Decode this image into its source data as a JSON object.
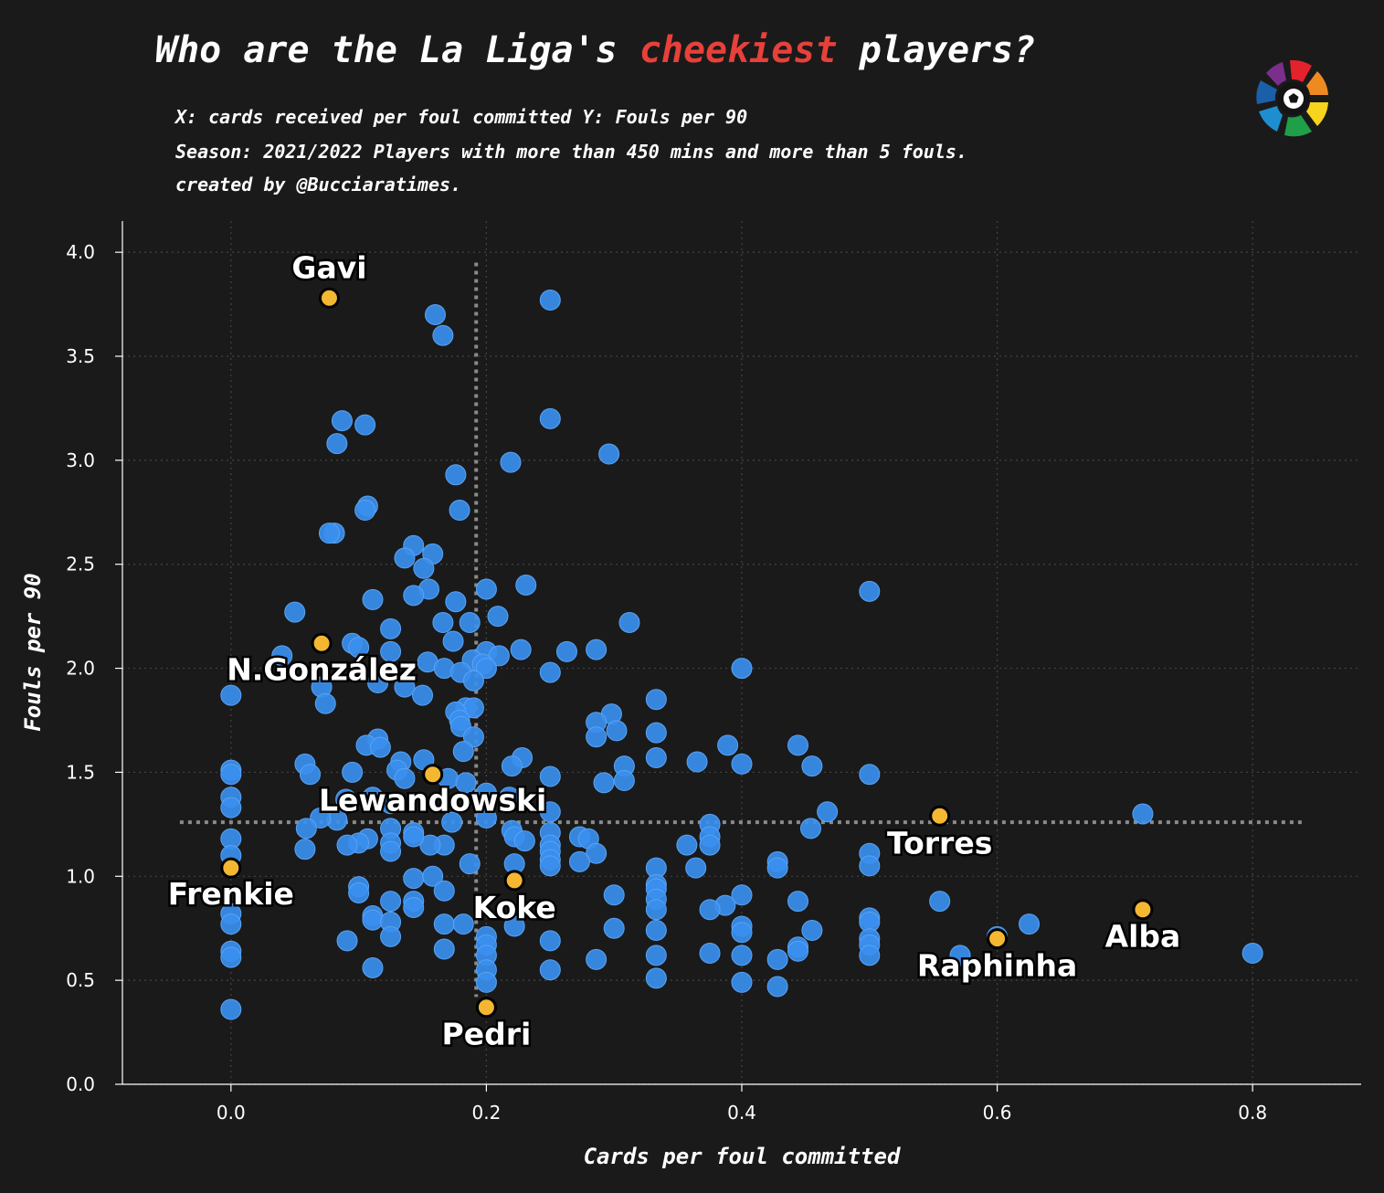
{
  "header": {
    "title_pre": "Who are the La Liga's ",
    "title_highlight": "cheekiest",
    "title_post": " players?",
    "subtitle_1": "X: cards received per foul committed Y: Fouls per 90",
    "subtitle_2": "Season: 2021/2022 Players with more than 450 mins and more than 5 fouls.",
    "subtitle_3": "created by @Bucciaratimes."
  },
  "colors": {
    "background": "#1a1a1a",
    "points": "#3a8fef",
    "highlight_points": "#f4b731",
    "title_highlight": "#e8403a",
    "grid": "#444444",
    "mean_lines": "#8a8a8a"
  },
  "logo_icon": "laliga-logo-icon",
  "chart_data": {
    "type": "scatter",
    "title": "Who are the La Liga's cheekiest players?",
    "xlabel": "Cards per foul committed",
    "ylabel": "Fouls per 90",
    "xlim": [
      -0.085,
      0.885
    ],
    "ylim": [
      0,
      4.15
    ],
    "x_ticks": [
      "0.0",
      "0.2",
      "0.4",
      "0.6",
      "0.8"
    ],
    "y_ticks": [
      "0.0",
      "0.5",
      "1.0",
      "1.5",
      "2.0",
      "2.5",
      "3.0",
      "3.5",
      "4.0"
    ],
    "grid": true,
    "mean_x": 0.192,
    "mean_y": 1.26,
    "points": [
      [
        0.25,
        3.77
      ],
      [
        0.16,
        3.7
      ],
      [
        0.166,
        3.6
      ],
      [
        0.25,
        3.2
      ],
      [
        0.087,
        3.19
      ],
      [
        0.105,
        3.17
      ],
      [
        0.083,
        3.08
      ],
      [
        0.296,
        3.03
      ],
      [
        0.219,
        2.99
      ],
      [
        0.176,
        2.93
      ],
      [
        0.107,
        2.78
      ],
      [
        0.105,
        2.76
      ],
      [
        0.179,
        2.76
      ],
      [
        0.081,
        2.65
      ],
      [
        0.077,
        2.65
      ],
      [
        0.143,
        2.59
      ],
      [
        0.158,
        2.55
      ],
      [
        0.136,
        2.53
      ],
      [
        0.151,
        2.48
      ],
      [
        0.5,
        2.37
      ],
      [
        0.2,
        2.38
      ],
      [
        0.231,
        2.4
      ],
      [
        0.155,
        2.38
      ],
      [
        0.143,
        2.35
      ],
      [
        0.111,
        2.33
      ],
      [
        0.176,
        2.32
      ],
      [
        0.05,
        2.27
      ],
      [
        0.209,
        2.25
      ],
      [
        0.166,
        2.22
      ],
      [
        0.187,
        2.22
      ],
      [
        0.312,
        2.22
      ],
      [
        0.125,
        2.19
      ],
      [
        0.174,
        2.13
      ],
      [
        0.095,
        2.12
      ],
      [
        0.1,
        2.1
      ],
      [
        0.227,
        2.09
      ],
      [
        0.263,
        2.08
      ],
      [
        0.286,
        2.09
      ],
      [
        0.04,
        2.06
      ],
      [
        0.2,
        2.08
      ],
      [
        0.125,
        2.08
      ],
      [
        0.21,
        2.06
      ],
      [
        0.154,
        2.03
      ],
      [
        0.189,
        2.04
      ],
      [
        0.197,
        2.02
      ],
      [
        0.167,
        2.0
      ],
      [
        0.2,
        2.0
      ],
      [
        0.4,
        2.0
      ],
      [
        0.25,
        1.98
      ],
      [
        0.18,
        1.98
      ],
      [
        0.19,
        1.94
      ],
      [
        0.115,
        1.93
      ],
      [
        0.136,
        1.91
      ],
      [
        0.071,
        1.91
      ],
      [
        0.0,
        1.87
      ],
      [
        0.15,
        1.87
      ],
      [
        0.074,
        1.83
      ],
      [
        0.333,
        1.85
      ],
      [
        0.184,
        1.81
      ],
      [
        0.19,
        1.81
      ],
      [
        0.176,
        1.79
      ],
      [
        0.298,
        1.78
      ],
      [
        0.286,
        1.74
      ],
      [
        0.179,
        1.75
      ],
      [
        0.18,
        1.72
      ],
      [
        0.302,
        1.7
      ],
      [
        0.333,
        1.69
      ],
      [
        0.19,
        1.67
      ],
      [
        0.286,
        1.67
      ],
      [
        0.115,
        1.66
      ],
      [
        0.106,
        1.63
      ],
      [
        0.117,
        1.62
      ],
      [
        0.389,
        1.63
      ],
      [
        0.444,
        1.63
      ],
      [
        0.182,
        1.6
      ],
      [
        0.333,
        1.57
      ],
      [
        0.228,
        1.57
      ],
      [
        0.365,
        1.55
      ],
      [
        0.4,
        1.54
      ],
      [
        0.058,
        1.54
      ],
      [
        0.151,
        1.56
      ],
      [
        0.133,
        1.55
      ],
      [
        0.22,
        1.53
      ],
      [
        0.455,
        1.53
      ],
      [
        0.308,
        1.53
      ],
      [
        0.13,
        1.51
      ],
      [
        0.0,
        1.51
      ],
      [
        0.0,
        1.49
      ],
      [
        0.062,
        1.49
      ],
      [
        0.095,
        1.5
      ],
      [
        0.136,
        1.47
      ],
      [
        0.5,
        1.49
      ],
      [
        0.25,
        1.48
      ],
      [
        0.17,
        1.47
      ],
      [
        0.184,
        1.45
      ],
      [
        0.292,
        1.45
      ],
      [
        0.308,
        1.46
      ],
      [
        0.2,
        1.4
      ],
      [
        0.218,
        1.38
      ],
      [
        0.09,
        1.37
      ],
      [
        0.0,
        1.38
      ],
      [
        0.25,
        1.31
      ],
      [
        0.467,
        1.31
      ],
      [
        0.714,
        1.3
      ],
      [
        0.083,
        1.27
      ],
      [
        0.0,
        1.33
      ],
      [
        0.111,
        1.38
      ],
      [
        0.125,
        1.35
      ],
      [
        0.07,
        1.28
      ],
      [
        0.2,
        1.28
      ],
      [
        0.173,
        1.26
      ],
      [
        0.375,
        1.25
      ],
      [
        0.454,
        1.23
      ],
      [
        0.125,
        1.23
      ],
      [
        0.059,
        1.23
      ],
      [
        0.143,
        1.21
      ],
      [
        0.22,
        1.22
      ],
      [
        0.25,
        1.21
      ],
      [
        0.273,
        1.19
      ],
      [
        0.28,
        1.18
      ],
      [
        0.375,
        1.19
      ],
      [
        0.222,
        1.19
      ],
      [
        0.357,
        1.15
      ],
      [
        0.0,
        1.18
      ],
      [
        0.107,
        1.18
      ],
      [
        0.375,
        1.15
      ],
      [
        0.125,
        1.16
      ],
      [
        0.1,
        1.16
      ],
      [
        0.091,
        1.15
      ],
      [
        0.25,
        1.15
      ],
      [
        0.23,
        1.17
      ],
      [
        0.167,
        1.15
      ],
      [
        0.156,
        1.15
      ],
      [
        0.143,
        1.19
      ],
      [
        0.0,
        1.1
      ],
      [
        0.058,
        1.13
      ],
      [
        0.125,
        1.12
      ],
      [
        0.25,
        1.12
      ],
      [
        0.5,
        1.11
      ],
      [
        0.286,
        1.11
      ],
      [
        0.25,
        1.08
      ],
      [
        0.273,
        1.07
      ],
      [
        0.428,
        1.07
      ],
      [
        0.187,
        1.06
      ],
      [
        0.222,
        1.06
      ],
      [
        0.5,
        1.05
      ],
      [
        0.428,
        1.04
      ],
      [
        0.364,
        1.04
      ],
      [
        0.333,
        1.04
      ],
      [
        0.25,
        1.05
      ],
      [
        0.143,
        0.99
      ],
      [
        0.158,
        1.0
      ],
      [
        0.333,
        0.96
      ],
      [
        0.1,
        0.95
      ],
      [
        0.333,
        0.94
      ],
      [
        0.1,
        0.92
      ],
      [
        0.167,
        0.93
      ],
      [
        0.3,
        0.91
      ],
      [
        0.4,
        0.91
      ],
      [
        0.143,
        0.88
      ],
      [
        0.125,
        0.88
      ],
      [
        0.444,
        0.88
      ],
      [
        0.555,
        0.88
      ],
      [
        0.333,
        0.89
      ],
      [
        0.143,
        0.85
      ],
      [
        0.387,
        0.86
      ],
      [
        0.375,
        0.84
      ],
      [
        0.333,
        0.84
      ],
      [
        0.111,
        0.81
      ],
      [
        0.111,
        0.79
      ],
      [
        0.0,
        0.82
      ],
      [
        0.125,
        0.78
      ],
      [
        0.167,
        0.77
      ],
      [
        0.0,
        0.77
      ],
      [
        0.5,
        0.8
      ],
      [
        0.5,
        0.78
      ],
      [
        0.625,
        0.77
      ],
      [
        0.4,
        0.76
      ],
      [
        0.222,
        0.76
      ],
      [
        0.182,
        0.77
      ],
      [
        0.3,
        0.75
      ],
      [
        0.4,
        0.73
      ],
      [
        0.333,
        0.74
      ],
      [
        0.455,
        0.74
      ],
      [
        0.125,
        0.71
      ],
      [
        0.2,
        0.71
      ],
      [
        0.25,
        0.69
      ],
      [
        0.5,
        0.7
      ],
      [
        0.091,
        0.69
      ],
      [
        0.6,
        0.71
      ],
      [
        0.5,
        0.67
      ],
      [
        0.2,
        0.67
      ],
      [
        0.167,
        0.65
      ],
      [
        0.444,
        0.66
      ],
      [
        0.444,
        0.64
      ],
      [
        0.0,
        0.64
      ],
      [
        0.0,
        0.61
      ],
      [
        0.333,
        0.62
      ],
      [
        0.4,
        0.62
      ],
      [
        0.375,
        0.63
      ],
      [
        0.2,
        0.62
      ],
      [
        0.5,
        0.62
      ],
      [
        0.571,
        0.62
      ],
      [
        0.8,
        0.63
      ],
      [
        0.286,
        0.6
      ],
      [
        0.428,
        0.6
      ],
      [
        0.111,
        0.56
      ],
      [
        0.2,
        0.55
      ],
      [
        0.25,
        0.55
      ],
      [
        0.333,
        0.51
      ],
      [
        0.2,
        0.49
      ],
      [
        0.4,
        0.49
      ],
      [
        0.428,
        0.47
      ],
      [
        0.0,
        0.36
      ]
    ],
    "highlighted": [
      {
        "name": "Gavi",
        "x": 0.077,
        "y": 3.78
      },
      {
        "name": "N.González",
        "x": 0.071,
        "y": 2.12
      },
      {
        "name": "Lewandowski",
        "x": 0.158,
        "y": 1.49
      },
      {
        "name": "Torres",
        "x": 0.555,
        "y": 1.29
      },
      {
        "name": "Frenkie",
        "x": 0.0,
        "y": 1.04
      },
      {
        "name": "Koke",
        "x": 0.222,
        "y": 0.98
      },
      {
        "name": "Alba",
        "x": 0.714,
        "y": 0.84
      },
      {
        "name": "Raphinha",
        "x": 0.6,
        "y": 0.7
      },
      {
        "name": "Pedri",
        "x": 0.2,
        "y": 0.37
      }
    ]
  }
}
